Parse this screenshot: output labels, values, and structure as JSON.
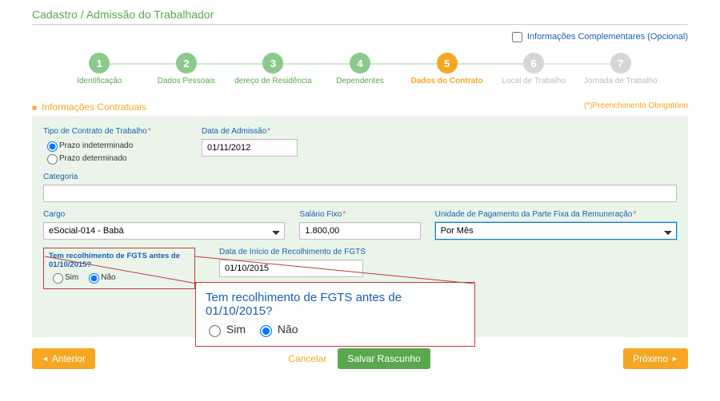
{
  "page_title": "Cadastro / Admissão do Trabalhador",
  "optional_info": {
    "label": "Informações Complementares (Opcional)",
    "checked": false
  },
  "steps": [
    {
      "num": "1",
      "label": "Identificação",
      "state": "done"
    },
    {
      "num": "2",
      "label": "Dados Pessoais",
      "state": "done"
    },
    {
      "num": "3",
      "label": "dereço de Residência",
      "state": "done"
    },
    {
      "num": "4",
      "label": "Dependentes",
      "state": "done"
    },
    {
      "num": "5",
      "label": "Dados do Contrato",
      "state": "active"
    },
    {
      "num": "6",
      "label": "Local de Trabalho",
      "state": "inactive"
    },
    {
      "num": "7",
      "label": "Jornada de Trabalho",
      "state": "inactive"
    }
  ],
  "section": {
    "title": "Informações Contratuais",
    "required_note": "(*)Preenchimento Obrigatório"
  },
  "form": {
    "tipo_contrato": {
      "label": "Tipo de Contrato de Trabalho",
      "options": [
        {
          "label": "Prazo indeterminado",
          "value": "indet",
          "checked": true
        },
        {
          "label": "Prazo determinado",
          "value": "det",
          "checked": false
        }
      ]
    },
    "data_admissao": {
      "label": "Data de Admissão",
      "value": "01/11/2012"
    },
    "categoria": {
      "label": "Categoria",
      "value": ""
    },
    "cargo": {
      "label": "Cargo",
      "value": "eSocial-014 - Babá"
    },
    "salario": {
      "label": "Salário Fixo",
      "value": "1.800,00"
    },
    "unidade_pagto": {
      "label": "Unidade de Pagamento da Parte Fixa da Remuneração",
      "value": "Por Mês"
    },
    "fgts": {
      "label": "Tem recolhimento de FGTS antes de 01/10/2015?",
      "options": [
        {
          "label": "Sim",
          "checked": false
        },
        {
          "label": "Não",
          "checked": true
        }
      ]
    },
    "data_inicio_fgts": {
      "label": "Data de Início de Recolhimento de FGTS",
      "value": "01/10/2015"
    }
  },
  "callout": {
    "question": "Tem recolhimento de FGTS antes de 01/10/2015?",
    "options": [
      {
        "label": "Sim",
        "checked": false
      },
      {
        "label": "Não",
        "checked": true
      }
    ]
  },
  "footer": {
    "prev": "Anterior",
    "cancel": "Cancelar",
    "save": "Salvar Rascunho",
    "next": "Próximo"
  }
}
